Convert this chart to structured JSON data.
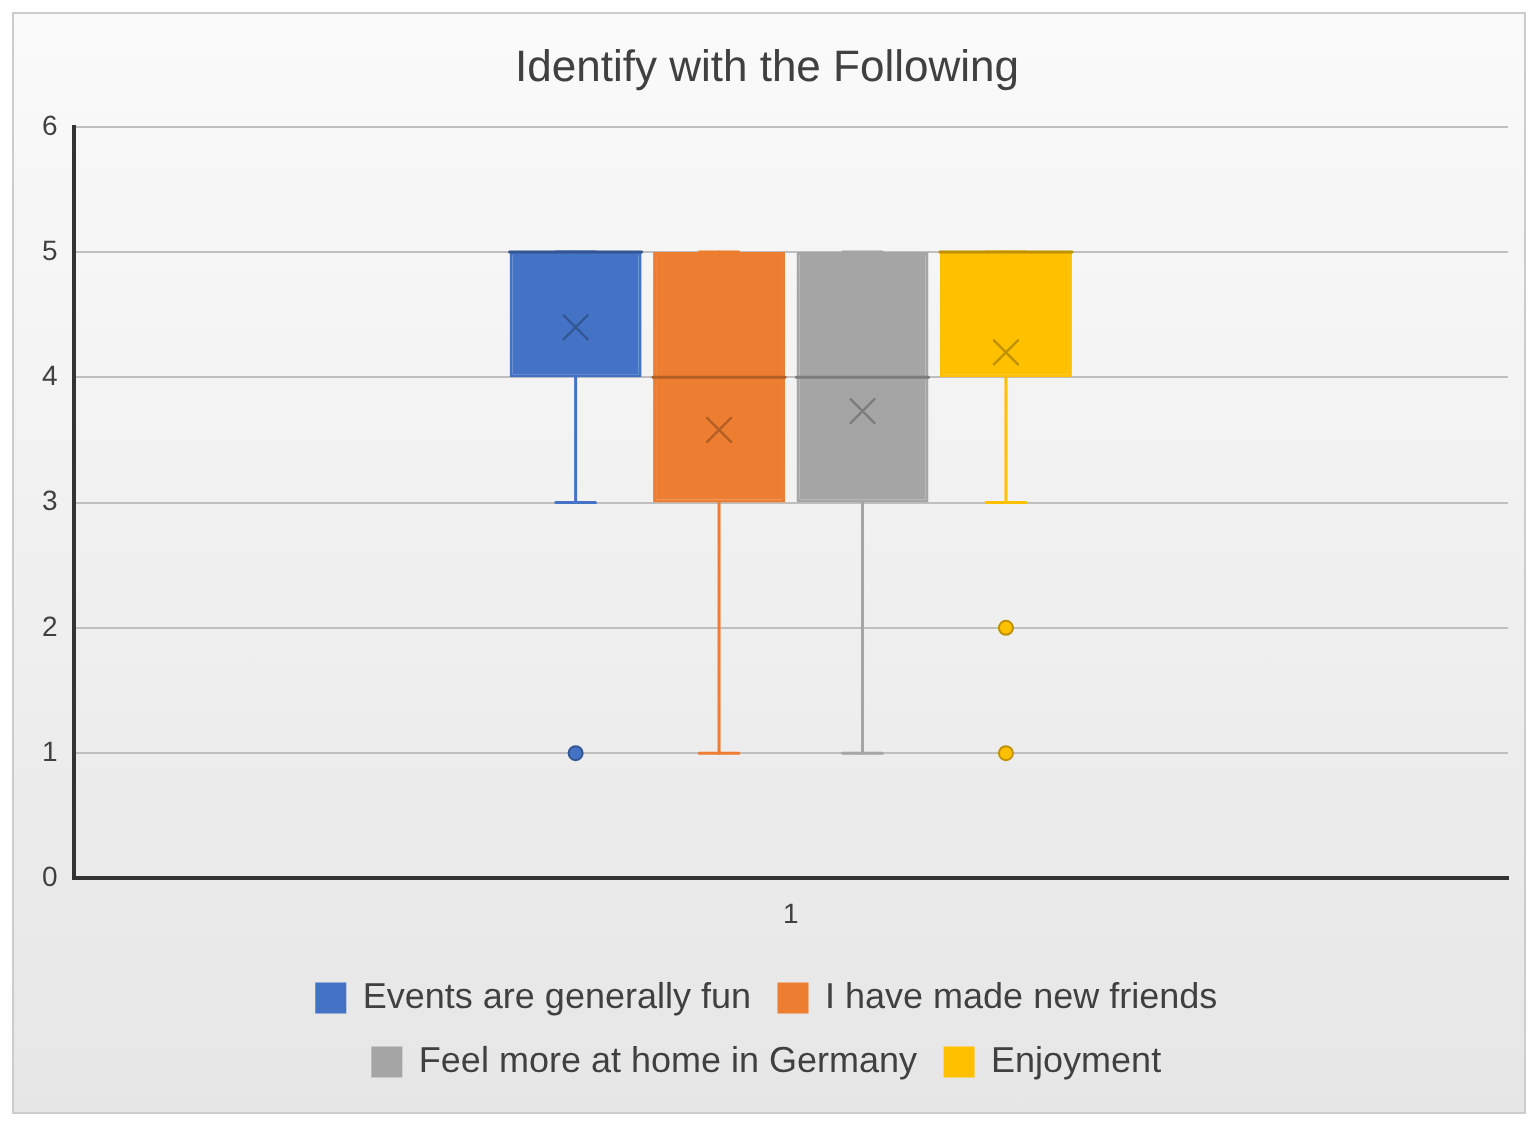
{
  "chart_data": {
    "type": "box",
    "title": "Identify with the Following",
    "categories": [
      "1"
    ],
    "ylim": [
      0,
      6
    ],
    "yticks": [
      0,
      1,
      2,
      3,
      4,
      5,
      6
    ],
    "grid": "y",
    "legend": "bottom",
    "marker": "circle",
    "series": [
      {
        "name": "Events are generally fun",
        "color": "#4472c4",
        "boxes": [
          {
            "low": 3,
            "q1": 4,
            "median": 5,
            "q3": 5,
            "high": 5,
            "mean": 4.4,
            "outliers": [
              1
            ]
          }
        ]
      },
      {
        "name": "I have made new friends",
        "color": "#ed7d31",
        "boxes": [
          {
            "low": 1,
            "q1": 3,
            "median": 4,
            "q3": 5,
            "high": 5,
            "mean": 3.58
          }
        ]
      },
      {
        "name": "Feel more at home in Germany",
        "color": "#a5a5a5",
        "boxes": [
          {
            "low": 1,
            "q1": 3,
            "median": 4,
            "q3": 5,
            "high": 5,
            "mean": 3.73
          }
        ]
      },
      {
        "name": "Enjoyment",
        "color": "#ffc000",
        "boxes": [
          {
            "low": 3,
            "q1": 4,
            "median": 5,
            "q3": 5,
            "high": 5,
            "mean": 4.2,
            "outliers": [
              2,
              1
            ]
          }
        ]
      }
    ]
  }
}
